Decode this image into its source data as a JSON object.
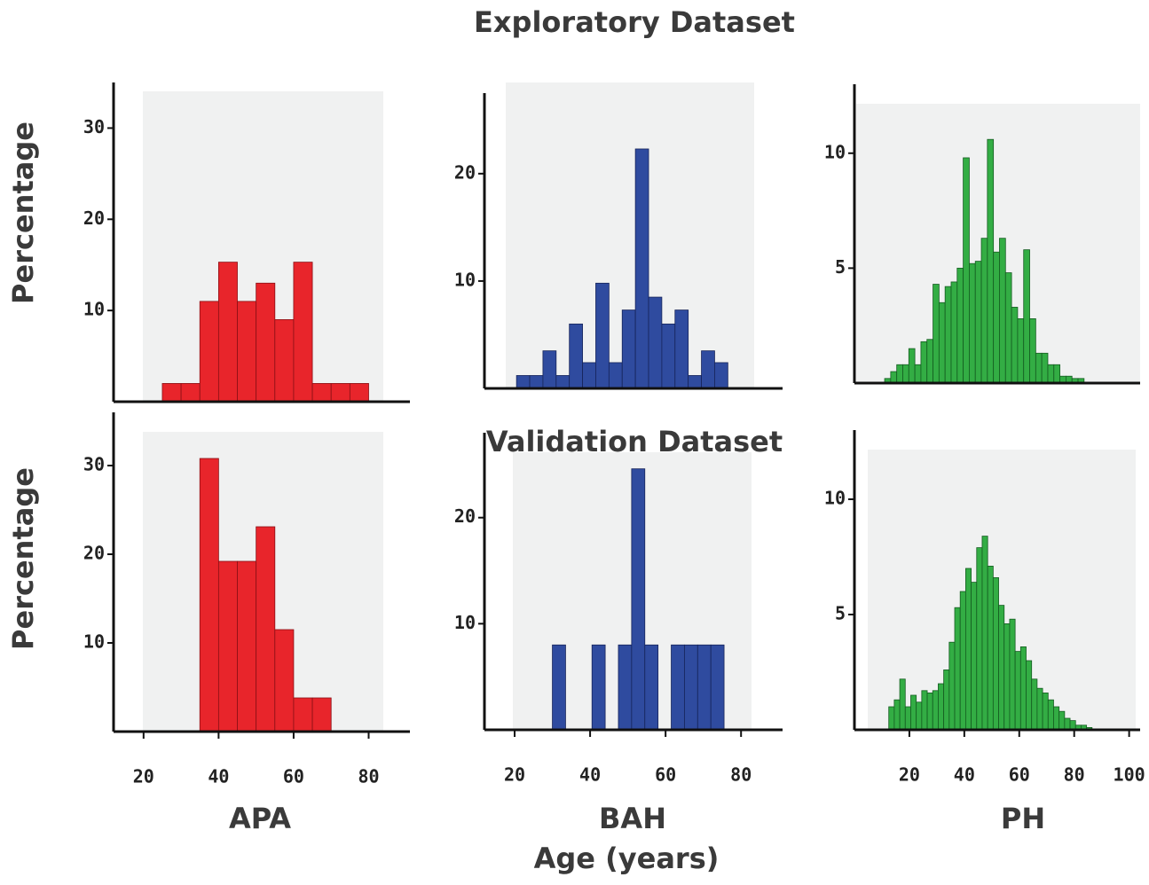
{
  "title": "Exploratory Dataset",
  "subtitle": "Validation Dataset",
  "ylabel": "Percentage",
  "xlabel": "Age (years)",
  "columns": [
    "APA",
    "BAH",
    "PH"
  ],
  "chart_data": [
    {
      "type": "histogram",
      "color": "#e8252b",
      "bins": [
        25,
        30,
        35,
        40,
        45,
        50,
        55,
        60,
        65,
        70,
        75,
        80
      ],
      "values": [
        2,
        2,
        11,
        15.3,
        11,
        13,
        9,
        15.3,
        2,
        2,
        2
      ],
      "xlim": [
        12,
        91
      ],
      "ylim": [
        0,
        35
      ],
      "xticks": [],
      "yticks": [
        10,
        20,
        30
      ]
    },
    {
      "type": "histogram",
      "color": "#2f4b9f",
      "bins": [
        20.5,
        24,
        27.5,
        31,
        34.5,
        38,
        41.5,
        45,
        48.5,
        52,
        55.5,
        59,
        62.5,
        66,
        69.5,
        73,
        76.5
      ],
      "values": [
        1.2,
        1.2,
        3.5,
        1.2,
        6,
        2.4,
        9.8,
        2.4,
        7.3,
        22.3,
        8.5,
        6,
        7.3,
        1.2,
        3.5,
        2.4
      ],
      "xlim": [
        12,
        91
      ],
      "ylim": [
        0,
        27.5
      ],
      "xticks": [],
      "yticks": [
        10,
        20
      ]
    },
    {
      "type": "histogram",
      "color": "#33ad44",
      "bins": [
        11,
        13.2,
        15.4,
        17.6,
        19.8,
        22,
        24.2,
        26.4,
        28.6,
        30.8,
        33,
        35.2,
        37.4,
        39.6,
        41.8,
        44,
        46.2,
        48.4,
        50.6,
        52.8,
        55,
        57.2,
        59.4,
        61.6,
        63.8,
        66,
        68.2,
        70.4,
        72.6,
        74.8,
        77,
        79.2,
        81.4,
        83.6
      ],
      "values": [
        0.2,
        0.5,
        0.8,
        0.8,
        1.5,
        0.8,
        1.8,
        1.9,
        4.3,
        3.5,
        4.2,
        4.4,
        5,
        9.8,
        5.2,
        5.3,
        6.3,
        10.6,
        5.7,
        6.3,
        4.8,
        3.3,
        2.8,
        5.8,
        2.8,
        1.3,
        1.3,
        0.8,
        0.8,
        0.3,
        0.3,
        0.2,
        0.2
      ],
      "xlim": [
        0,
        104
      ],
      "ylim": [
        0,
        13
      ],
      "xticks": [],
      "yticks": [
        5,
        10
      ]
    },
    {
      "type": "histogram",
      "color": "#e8252b",
      "bins": [
        35,
        40,
        45,
        50,
        55,
        60,
        65,
        70
      ],
      "values": [
        30.8,
        19.2,
        19.2,
        23.1,
        11.5,
        3.8,
        3.8
      ],
      "xlim": [
        12,
        91
      ],
      "ylim": [
        0,
        36
      ],
      "xticks": [
        20,
        40,
        60,
        80
      ],
      "yticks": [
        10,
        20,
        30
      ]
    },
    {
      "type": "histogram",
      "color": "#2f4b9f",
      "bins": [
        30,
        33.5,
        37,
        40.5,
        44,
        47.5,
        51,
        54.5,
        58,
        61.5,
        65,
        68.5,
        72,
        75.5
      ],
      "values": [
        8,
        0,
        0,
        8,
        0,
        8,
        24.6,
        8,
        0,
        8,
        8,
        8,
        8
      ],
      "xlim": [
        12,
        91
      ],
      "ylim": [
        0,
        28
      ],
      "xticks": [
        20,
        40,
        60,
        80
      ],
      "yticks": [
        10,
        20
      ]
    },
    {
      "type": "histogram",
      "color": "#33ad44",
      "bins": [
        12.5,
        14.5,
        16.5,
        18.5,
        20.5,
        22.5,
        24.5,
        26.5,
        28.5,
        30.5,
        32.5,
        34.5,
        36.5,
        38.5,
        40.5,
        42.5,
        44.5,
        46.5,
        48.5,
        50.5,
        52.5,
        54.5,
        56.5,
        58.5,
        60.5,
        62.5,
        64.5,
        66.5,
        68.5,
        70.5,
        72.5,
        74.5,
        76.5,
        78.5,
        80.5,
        82.5,
        84.5,
        86.5
      ],
      "values": [
        1.0,
        1.3,
        2.2,
        1.0,
        1.5,
        1.2,
        1.7,
        1.6,
        1.7,
        2.0,
        2.6,
        3.8,
        5.3,
        6.0,
        7.0,
        6.4,
        7.9,
        8.4,
        7.1,
        6.6,
        5.4,
        4.6,
        4.8,
        3.4,
        3.6,
        3.0,
        2.2,
        1.8,
        1.6,
        1.3,
        1.0,
        0.8,
        0.5,
        0.4,
        0.2,
        0.2,
        0.1
      ],
      "xlim": [
        0,
        104
      ],
      "ylim": [
        0,
        13
      ],
      "xticks": [
        20,
        40,
        60,
        80,
        100
      ],
      "yticks": [
        5,
        10
      ]
    }
  ]
}
